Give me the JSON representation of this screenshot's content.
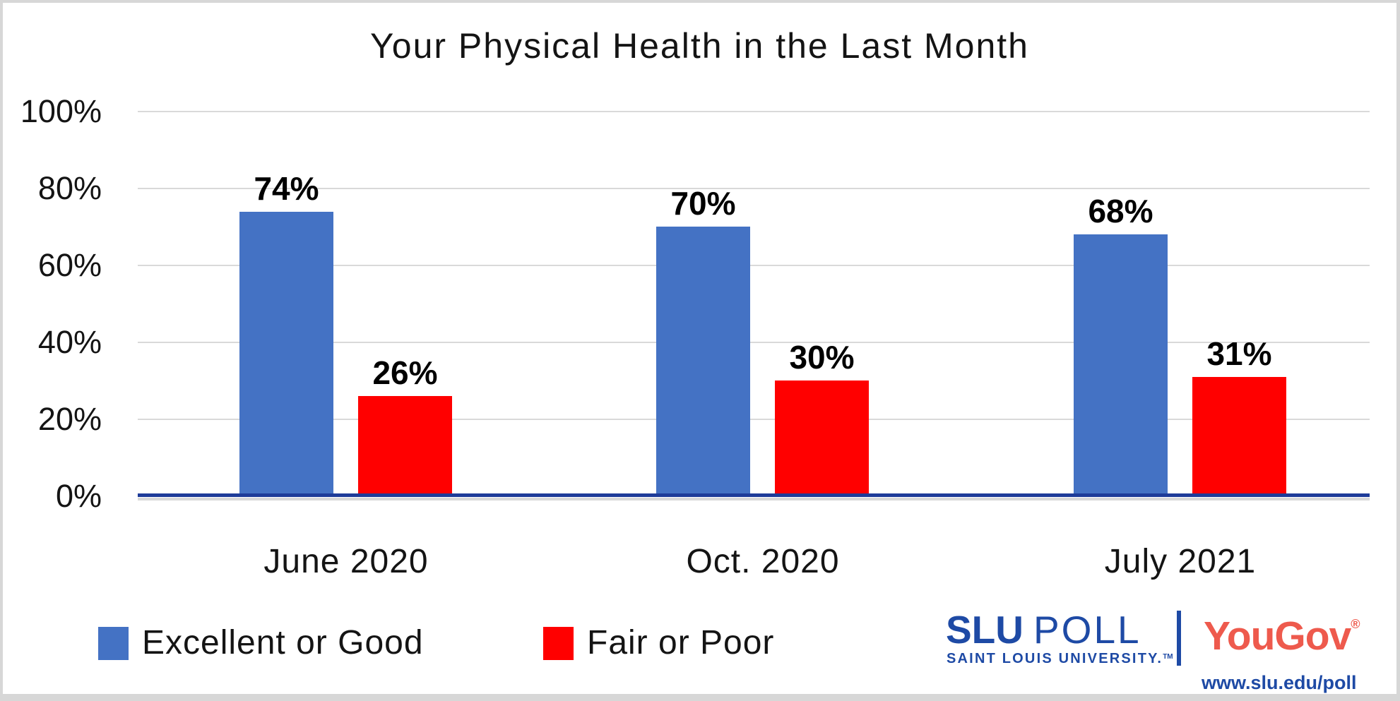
{
  "chart_data": {
    "type": "bar",
    "title": "Your Physical Health in the Last Month",
    "categories": [
      "June 2020",
      "Oct. 2020",
      "July 2021"
    ],
    "series": [
      {
        "name": "Excellent or Good",
        "color": "#4472C4",
        "values": [
          74,
          70,
          68
        ]
      },
      {
        "name": "Fair or Poor",
        "color": "#FF0000",
        "values": [
          26,
          30,
          31
        ]
      }
    ],
    "value_suffix": "%",
    "ylim": [
      0,
      100
    ],
    "ytick_values": [
      0,
      20,
      40,
      60,
      80,
      100
    ],
    "ytick_labels": [
      "0%",
      "20%",
      "40%",
      "60%",
      "80%",
      "100%"
    ],
    "grid": true,
    "legend_position": "bottom-left",
    "axis_color": "#1e3c99",
    "gridline_color": "#d9d9d9"
  },
  "branding": {
    "slu": "SLU",
    "poll": "POLL",
    "university": "SAINT LOUIS UNIVERSITY.",
    "tm": "TM",
    "yougov": "YouGov",
    "reg": "®",
    "url": "www.slu.edu/poll",
    "slu_blue": "#1e4aa5",
    "yougov_red": "#ee5a4d"
  }
}
